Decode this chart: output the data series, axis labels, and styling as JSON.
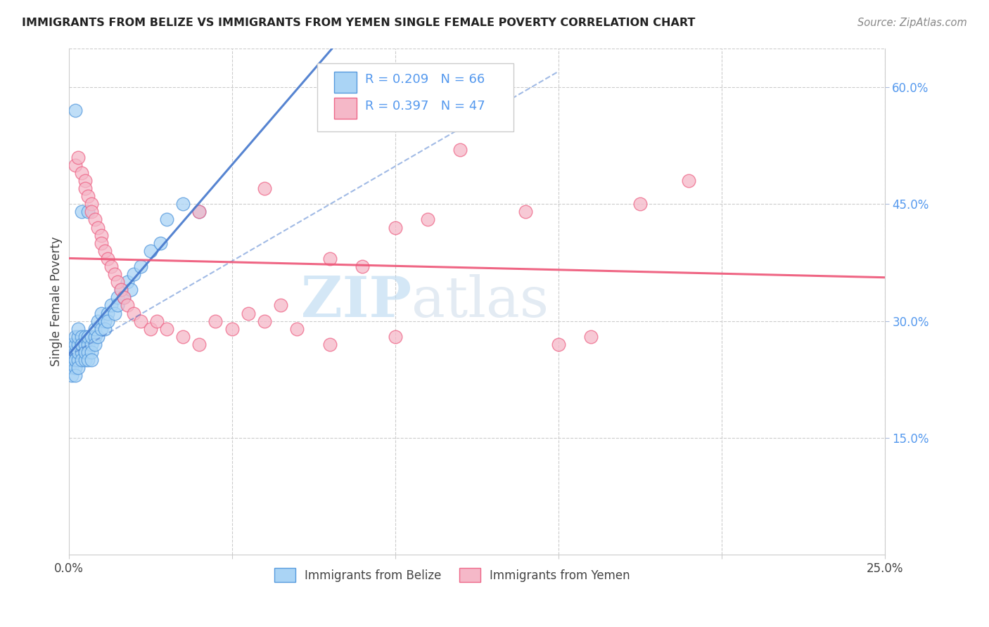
{
  "title": "IMMIGRANTS FROM BELIZE VS IMMIGRANTS FROM YEMEN SINGLE FEMALE POVERTY CORRELATION CHART",
  "source": "Source: ZipAtlas.com",
  "ylabel": "Single Female Poverty",
  "xlim": [
    0.0,
    0.25
  ],
  "ylim": [
    0.0,
    0.65
  ],
  "x_ticks": [
    0.0,
    0.05,
    0.1,
    0.15,
    0.2,
    0.25
  ],
  "x_tick_labels": [
    "0.0%",
    "",
    "",
    "",
    "",
    "25.0%"
  ],
  "y_ticks_right": [
    0.15,
    0.3,
    0.45,
    0.6
  ],
  "y_tick_labels_right": [
    "15.0%",
    "30.0%",
    "45.0%",
    "60.0%"
  ],
  "color_belize": "#aad4f5",
  "color_yemen": "#f5b8c8",
  "color_belize_edge": "#5599dd",
  "color_yemen_edge": "#ee6688",
  "color_belize_line": "#4477cc",
  "color_yemen_line": "#ee5577",
  "watermark_color": "#d8eaf8",
  "grid_color": "#cccccc",
  "right_axis_color": "#5599ee",
  "belize_x": [
    0.001,
    0.001,
    0.001,
    0.001,
    0.001,
    0.002,
    0.002,
    0.002,
    0.002,
    0.002,
    0.002,
    0.002,
    0.003,
    0.003,
    0.003,
    0.003,
    0.003,
    0.003,
    0.003,
    0.004,
    0.004,
    0.004,
    0.004,
    0.004,
    0.005,
    0.005,
    0.005,
    0.005,
    0.005,
    0.006,
    0.006,
    0.006,
    0.006,
    0.007,
    0.007,
    0.007,
    0.007,
    0.008,
    0.008,
    0.008,
    0.009,
    0.009,
    0.01,
    0.01,
    0.011,
    0.011,
    0.012,
    0.012,
    0.013,
    0.014,
    0.015,
    0.015,
    0.016,
    0.017,
    0.018,
    0.019,
    0.02,
    0.022,
    0.025,
    0.028,
    0.03,
    0.035,
    0.04,
    0.002,
    0.004,
    0.006
  ],
  "belize_y": [
    0.25,
    0.27,
    0.24,
    0.26,
    0.23,
    0.25,
    0.26,
    0.24,
    0.23,
    0.27,
    0.28,
    0.25,
    0.27,
    0.26,
    0.25,
    0.24,
    0.26,
    0.28,
    0.29,
    0.26,
    0.27,
    0.25,
    0.28,
    0.27,
    0.26,
    0.25,
    0.27,
    0.28,
    0.26,
    0.27,
    0.26,
    0.25,
    0.28,
    0.27,
    0.26,
    0.28,
    0.25,
    0.28,
    0.27,
    0.29,
    0.28,
    0.3,
    0.29,
    0.31,
    0.3,
    0.29,
    0.31,
    0.3,
    0.32,
    0.31,
    0.33,
    0.32,
    0.34,
    0.33,
    0.35,
    0.34,
    0.36,
    0.37,
    0.39,
    0.4,
    0.43,
    0.45,
    0.44,
    0.57,
    0.44,
    0.44
  ],
  "yemen_x": [
    0.002,
    0.003,
    0.004,
    0.005,
    0.005,
    0.006,
    0.007,
    0.007,
    0.008,
    0.009,
    0.01,
    0.01,
    0.011,
    0.012,
    0.013,
    0.014,
    0.015,
    0.016,
    0.017,
    0.018,
    0.02,
    0.022,
    0.025,
    0.027,
    0.03,
    0.035,
    0.04,
    0.045,
    0.05,
    0.055,
    0.06,
    0.065,
    0.07,
    0.08,
    0.09,
    0.1,
    0.11,
    0.12,
    0.14,
    0.15,
    0.16,
    0.175,
    0.19,
    0.1,
    0.08,
    0.06,
    0.04
  ],
  "yemen_y": [
    0.5,
    0.51,
    0.49,
    0.48,
    0.47,
    0.46,
    0.45,
    0.44,
    0.43,
    0.42,
    0.41,
    0.4,
    0.39,
    0.38,
    0.37,
    0.36,
    0.35,
    0.34,
    0.33,
    0.32,
    0.31,
    0.3,
    0.29,
    0.3,
    0.29,
    0.28,
    0.27,
    0.3,
    0.29,
    0.31,
    0.3,
    0.32,
    0.29,
    0.38,
    0.37,
    0.42,
    0.43,
    0.52,
    0.44,
    0.27,
    0.28,
    0.45,
    0.48,
    0.28,
    0.27,
    0.47,
    0.44
  ]
}
